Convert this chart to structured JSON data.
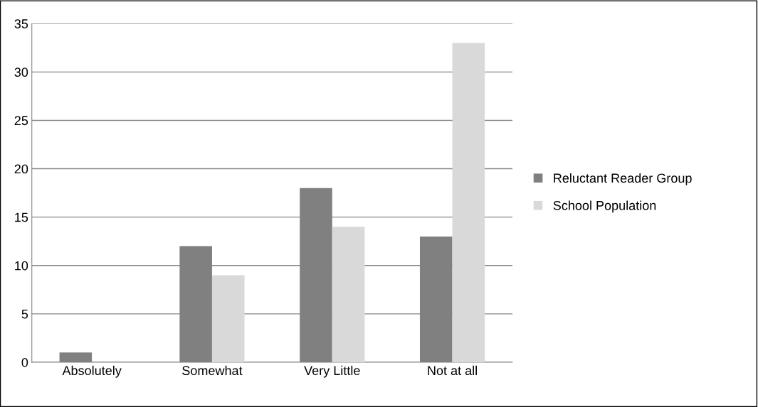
{
  "chart_data": {
    "type": "bar",
    "categories": [
      "Absolutely",
      "Somewhat",
      "Very Little",
      "Not at all"
    ],
    "series": [
      {
        "name": "Reluctant Reader Group",
        "color": "#808080",
        "values": [
          1,
          12,
          18,
          13
        ]
      },
      {
        "name": "School Population",
        "color": "#d9d9d9",
        "values": [
          0,
          9,
          14,
          33
        ]
      }
    ],
    "ylim": [
      0,
      35
    ],
    "yticks": [
      0,
      5,
      10,
      15,
      20,
      25,
      30,
      35
    ],
    "grid": "y",
    "legend": "right"
  }
}
